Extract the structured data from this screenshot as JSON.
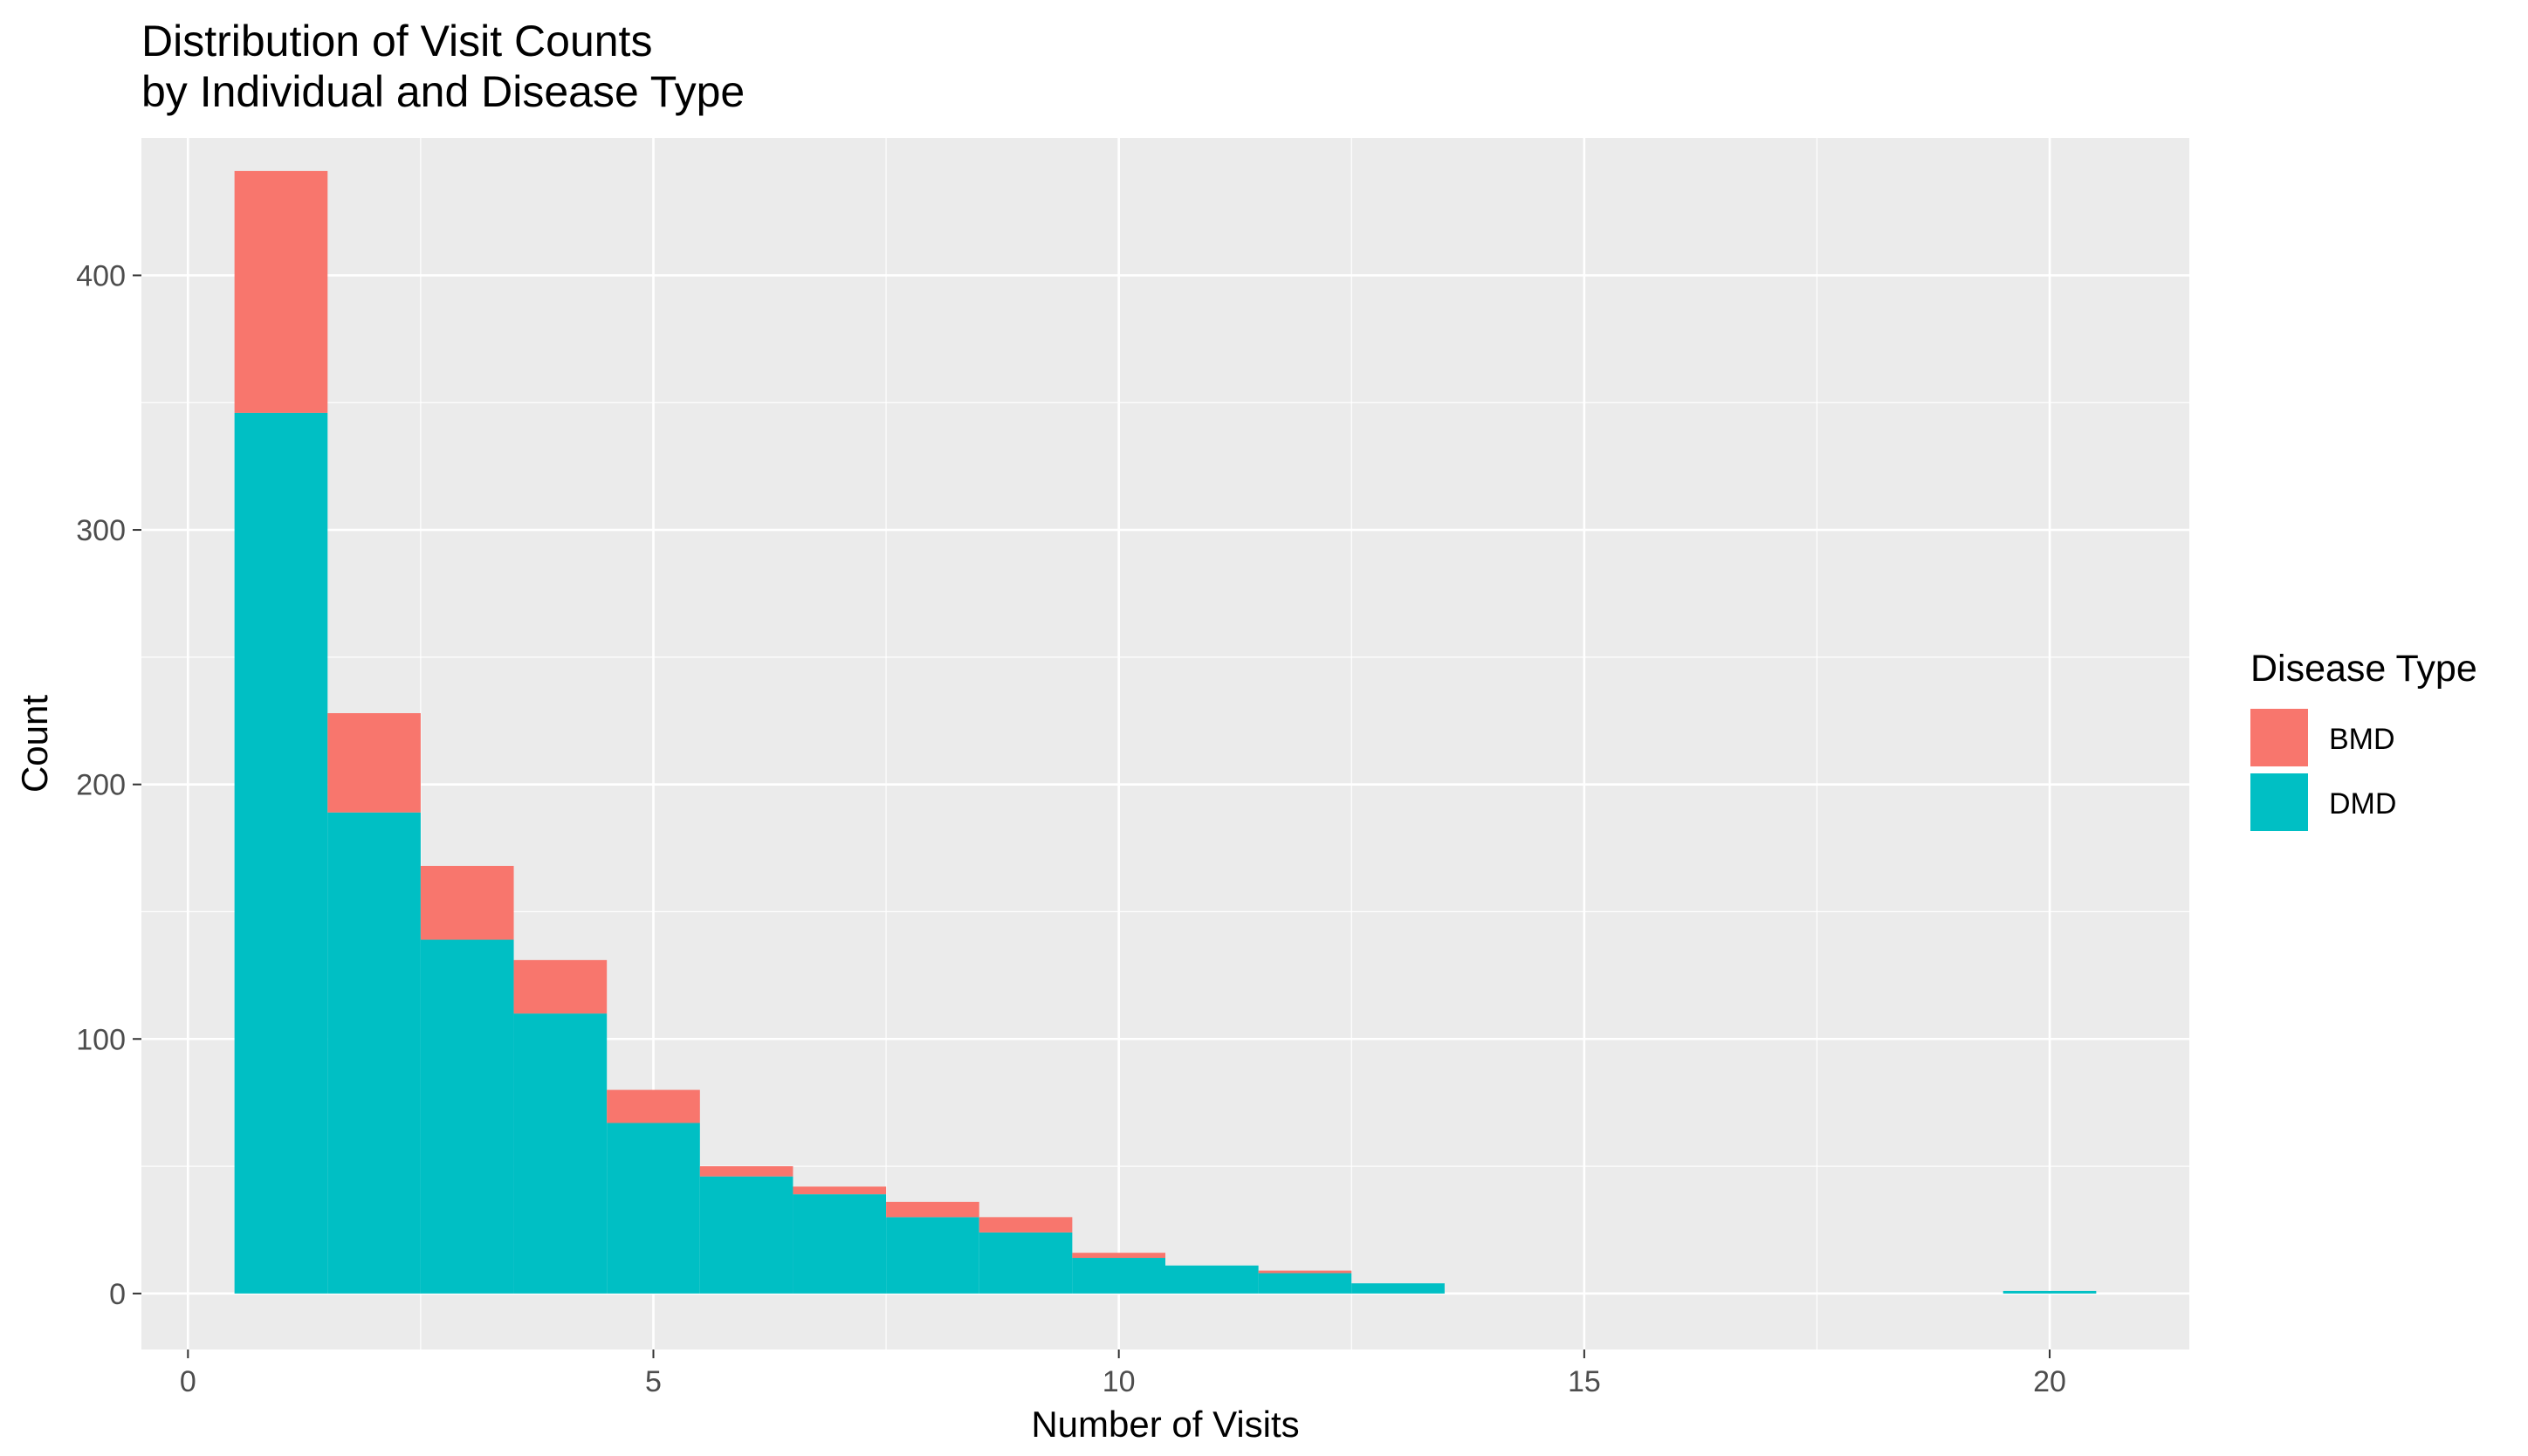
{
  "chart_data": {
    "type": "bar",
    "stacked": true,
    "title": [
      "Distribution of Visit Counts",
      "by Individual and Disease Type"
    ],
    "xlabel": "Number of Visits",
    "ylabel": "Count",
    "xlim": [
      -0.5,
      21.5
    ],
    "ylim": [
      -22,
      454
    ],
    "x_ticks": [
      0,
      5,
      10,
      15,
      20
    ],
    "y_ticks": [
      0,
      100,
      200,
      300,
      400
    ],
    "grid": true,
    "legend": {
      "title": "Disease Type",
      "position": "right"
    },
    "x": [
      1,
      2,
      3,
      4,
      5,
      6,
      7,
      8,
      9,
      10,
      11,
      12,
      13,
      20
    ],
    "series": [
      {
        "name": "DMD",
        "color": "#00BFC4",
        "values": [
          346,
          189,
          139,
          110,
          67,
          46,
          39,
          30,
          24,
          14,
          11,
          8,
          4,
          1
        ]
      },
      {
        "name": "BMD",
        "color": "#F8766D",
        "values": [
          95,
          39,
          29,
          21,
          13,
          4,
          3,
          6,
          6,
          2,
          0,
          1,
          0,
          0
        ]
      }
    ]
  }
}
